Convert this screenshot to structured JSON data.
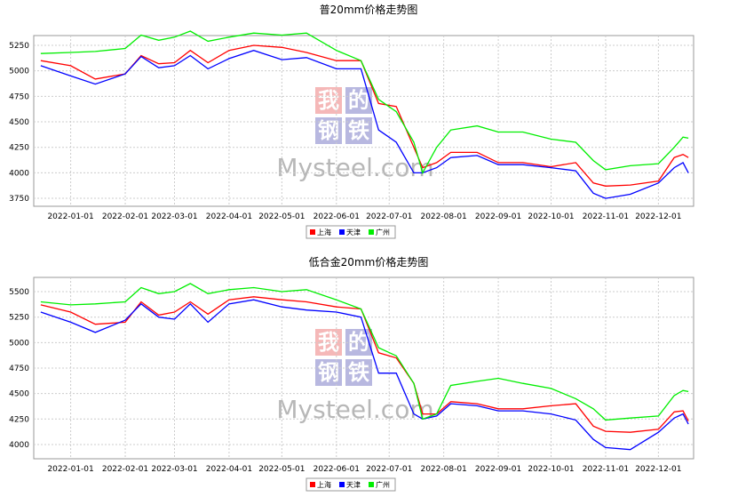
{
  "chart_data": [
    {
      "type": "line",
      "title": "普20mm价格走势图",
      "x": [
        "2021-12-15",
        "2022-01-01",
        "2022-01-15",
        "2022-02-01",
        "2022-02-10",
        "2022-02-20",
        "2022-03-01",
        "2022-03-10",
        "2022-03-20",
        "2022-04-01",
        "2022-04-15",
        "2022-05-01",
        "2022-05-15",
        "2022-06-01",
        "2022-06-15",
        "2022-06-25",
        "2022-07-05",
        "2022-07-15",
        "2022-07-20",
        "2022-07-28",
        "2022-08-05",
        "2022-08-20",
        "2022-09-01",
        "2022-09-15",
        "2022-10-01",
        "2022-10-15",
        "2022-10-25",
        "2022-11-01",
        "2022-11-15",
        "2022-12-01",
        "2022-12-10",
        "2022-12-15",
        "2022-12-18"
      ],
      "series": [
        {
          "name": "上海",
          "color": "#ff0000",
          "values": [
            5100,
            5050,
            4920,
            4970,
            5150,
            5070,
            5080,
            5200,
            5080,
            5200,
            5250,
            5230,
            5180,
            5100,
            5100,
            4680,
            4650,
            4250,
            4050,
            4100,
            4200,
            4200,
            4100,
            4100,
            4060,
            4100,
            3900,
            3870,
            3880,
            3920,
            4150,
            4180,
            4150
          ]
        },
        {
          "name": "天津",
          "color": "#0000ff",
          "values": [
            5050,
            4950,
            4870,
            4970,
            5140,
            5030,
            5050,
            5150,
            5020,
            5120,
            5200,
            5110,
            5130,
            5020,
            5020,
            4420,
            4300,
            4000,
            4000,
            4050,
            4150,
            4170,
            4080,
            4080,
            4050,
            4020,
            3800,
            3750,
            3790,
            3900,
            4050,
            4100,
            4000
          ]
        },
        {
          "name": "广州",
          "color": "#00ee00",
          "values": [
            5170,
            5180,
            5190,
            5220,
            5350,
            5300,
            5330,
            5390,
            5290,
            5330,
            5370,
            5350,
            5370,
            5200,
            5100,
            4720,
            4600,
            4300,
            4000,
            4250,
            4420,
            4460,
            4400,
            4400,
            4330,
            4300,
            4120,
            4030,
            4070,
            4090,
            4250,
            4350,
            4340
          ]
        }
      ],
      "xlim": [
        "2021-12-11",
        "2022-12-21"
      ],
      "xticks": [
        "2022-01-01",
        "2022-02-01",
        "2022-03-01",
        "2022-04-01",
        "2022-05-01",
        "2022-06-01",
        "2022-07-01",
        "2022-08-01",
        "2022-09-01",
        "2022-10-01",
        "2022-11-01",
        "2022-12-01"
      ],
      "ylim": [
        3672,
        5346
      ],
      "yticks": [
        3750,
        4000,
        4250,
        4500,
        4750,
        5000,
        5250
      ],
      "grid": true
    },
    {
      "type": "line",
      "title": "低合金20mm价格走势图",
      "x": [
        "2021-12-15",
        "2022-01-01",
        "2022-01-15",
        "2022-02-01",
        "2022-02-10",
        "2022-02-20",
        "2022-03-01",
        "2022-03-10",
        "2022-03-20",
        "2022-04-01",
        "2022-04-15",
        "2022-05-01",
        "2022-05-15",
        "2022-06-01",
        "2022-06-15",
        "2022-06-25",
        "2022-07-05",
        "2022-07-15",
        "2022-07-20",
        "2022-07-28",
        "2022-08-05",
        "2022-08-20",
        "2022-09-01",
        "2022-09-15",
        "2022-10-01",
        "2022-10-15",
        "2022-10-25",
        "2022-11-01",
        "2022-11-15",
        "2022-12-01",
        "2022-12-10",
        "2022-12-15",
        "2022-12-18"
      ],
      "series": [
        {
          "name": "上海",
          "color": "#ff0000",
          "values": [
            5370,
            5300,
            5180,
            5200,
            5400,
            5270,
            5300,
            5400,
            5280,
            5420,
            5450,
            5420,
            5400,
            5350,
            5330,
            4900,
            4850,
            4600,
            4300,
            4300,
            4420,
            4400,
            4350,
            4350,
            4380,
            4400,
            4180,
            4130,
            4120,
            4150,
            4320,
            4330,
            4230
          ]
        },
        {
          "name": "天津",
          "color": "#0000ff",
          "values": [
            5300,
            5200,
            5100,
            5220,
            5380,
            5250,
            5230,
            5380,
            5200,
            5380,
            5420,
            5350,
            5320,
            5300,
            5250,
            4700,
            4700,
            4300,
            4250,
            4280,
            4400,
            4380,
            4330,
            4330,
            4300,
            4240,
            4050,
            3970,
            3950,
            4120,
            4260,
            4300,
            4200
          ]
        },
        {
          "name": "广州",
          "color": "#00ee00",
          "values": [
            5400,
            5370,
            5380,
            5400,
            5540,
            5480,
            5500,
            5580,
            5480,
            5520,
            5540,
            5500,
            5520,
            5420,
            5330,
            4950,
            4870,
            4600,
            4250,
            4300,
            4580,
            4620,
            4650,
            4600,
            4550,
            4450,
            4350,
            4240,
            4260,
            4280,
            4480,
            4530,
            4520
          ]
        }
      ],
      "xlim": [
        "2021-12-11",
        "2022-12-21"
      ],
      "xticks": [
        "2022-01-01",
        "2022-02-01",
        "2022-03-01",
        "2022-04-01",
        "2022-05-01",
        "2022-06-01",
        "2022-07-01",
        "2022-08-01",
        "2022-09-01",
        "2022-10-01",
        "2022-11-01",
        "2022-12-01"
      ],
      "ylim": [
        3860,
        5640
      ],
      "yticks": [
        4000,
        4250,
        4500,
        4750,
        5000,
        5250,
        5500
      ],
      "grid": true
    }
  ],
  "watermark": {
    "char1": "我",
    "char2": "的",
    "char3": "钢",
    "char4": "铁",
    "brand": "Mysteel.com"
  }
}
